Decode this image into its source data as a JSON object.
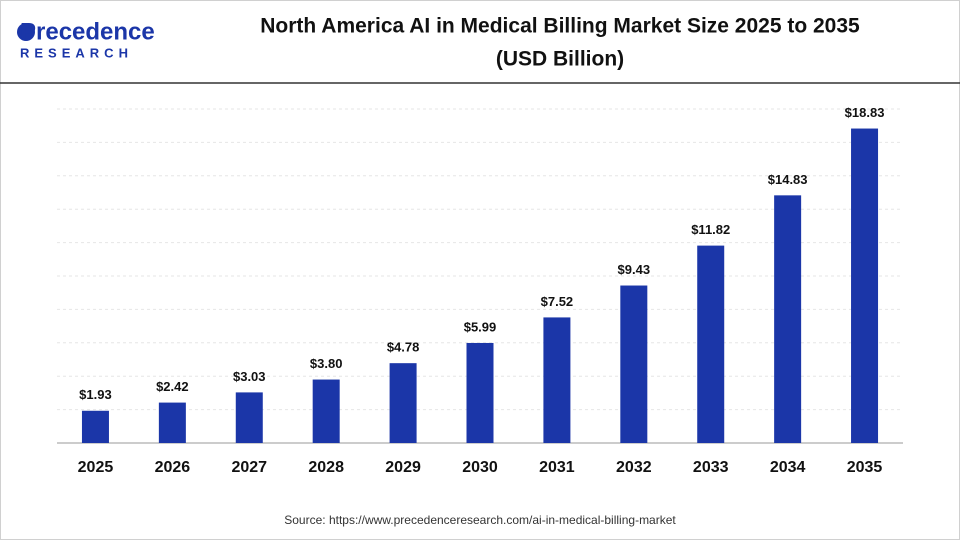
{
  "logo": {
    "name": "Precedence",
    "tagline": "RESEARCH"
  },
  "chart_data": {
    "type": "bar",
    "title": "North America AI in Medical Billing Market Size 2025 to 2035",
    "subtitle": "(USD Billion)",
    "categories": [
      "2025",
      "2026",
      "2027",
      "2028",
      "2029",
      "2030",
      "2031",
      "2032",
      "2033",
      "2034",
      "2035"
    ],
    "values": [
      1.93,
      2.42,
      3.03,
      3.8,
      4.78,
      5.99,
      7.52,
      9.43,
      11.82,
      14.83,
      18.83
    ],
    "value_labels": [
      "$1.93",
      "$2.42",
      "$3.03",
      "$3.80",
      "$4.78",
      "$5.99",
      "$7.52",
      "$9.43",
      "$11.82",
      "$14.83",
      "$18.83"
    ],
    "color": "#1b36a8",
    "ylim": [
      0,
      20
    ],
    "yticks": [
      0,
      2,
      4,
      6,
      8,
      10,
      12,
      14,
      16,
      18,
      20
    ],
    "grid": true,
    "source": "Source: https://www.precedenceresearch.com/ai-in-medical-billing-market"
  }
}
